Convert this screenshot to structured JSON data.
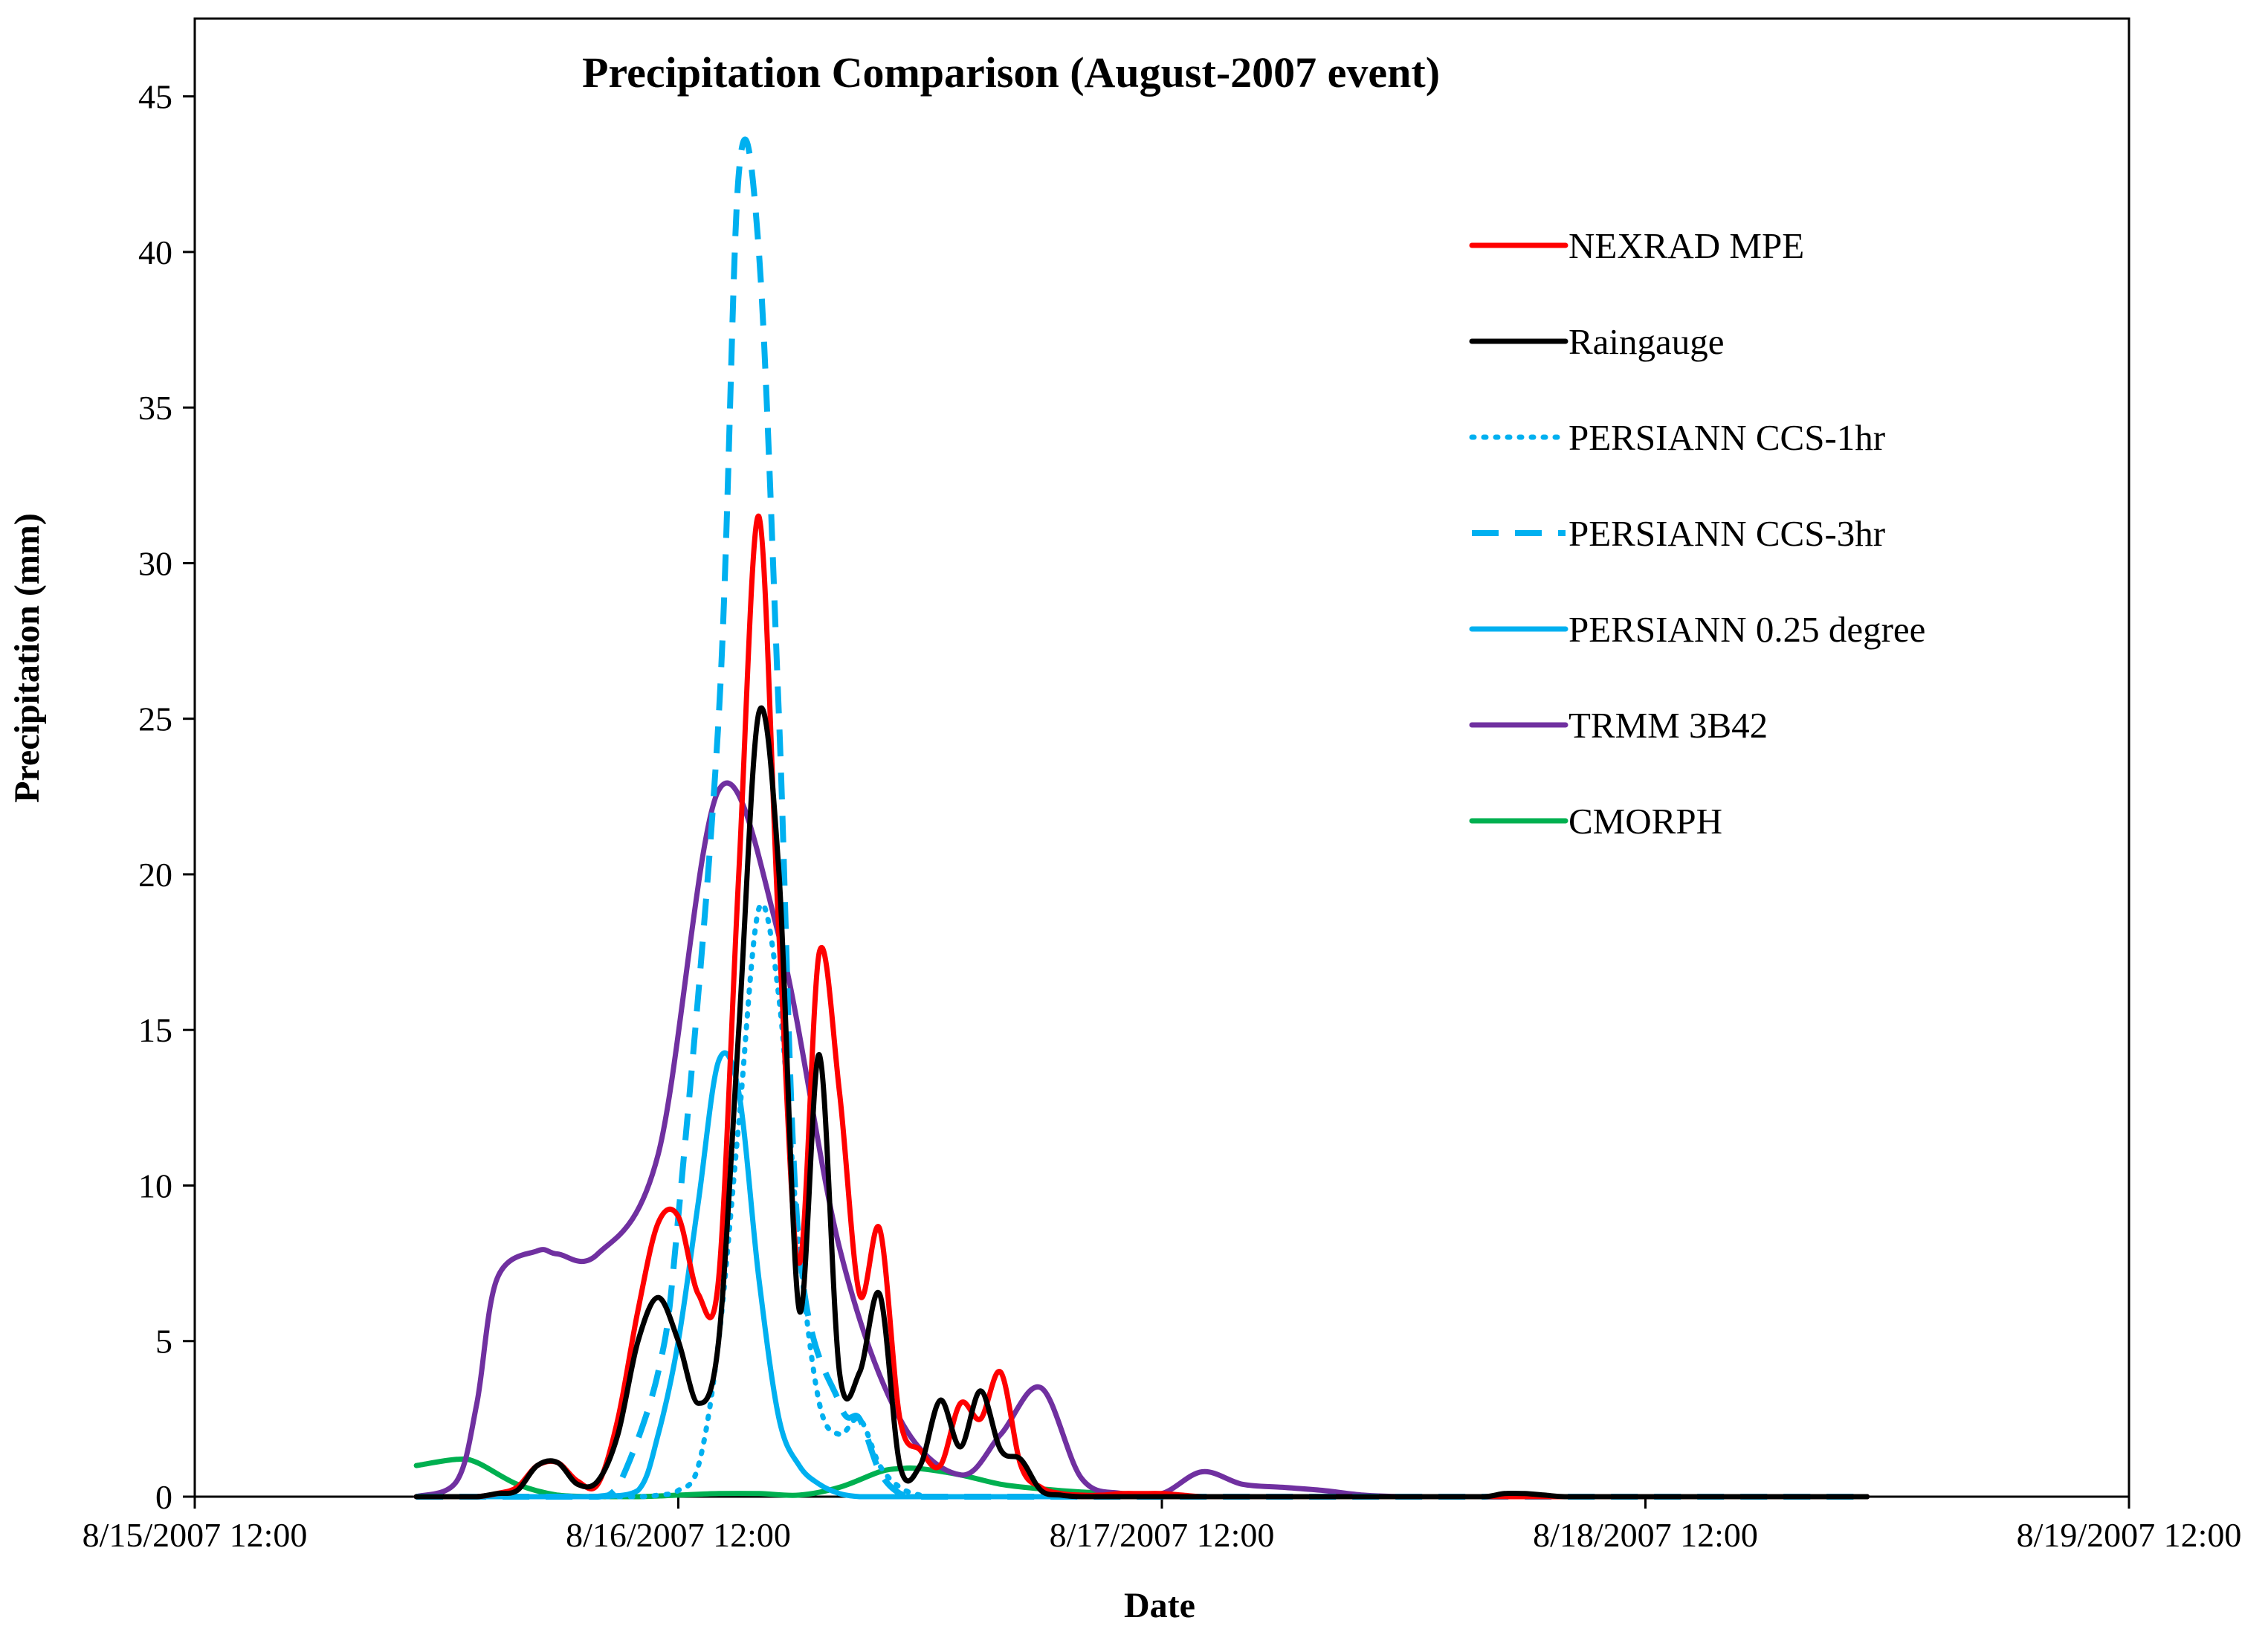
{
  "chart_data": {
    "type": "line",
    "title": "Precipitation Comparison (August-2007 event)",
    "xlabel": "Date",
    "ylabel": "Precipitation (mm)",
    "xlim": [
      0,
      96
    ],
    "x_unit": "hours since 8/15/2007 12:00",
    "ylim": [
      0,
      47.5
    ],
    "x_tick_values": [
      0,
      24,
      48,
      72,
      96
    ],
    "x_tick_labels": [
      "8/15/2007 12:00",
      "8/16/2007 12:00",
      "8/17/2007 12:00",
      "8/18/2007 12:00",
      "8/19/2007 12:00"
    ],
    "y_ticks": [
      0,
      5,
      10,
      15,
      20,
      25,
      30,
      35,
      40,
      45
    ],
    "grid": false,
    "legend_position": "right",
    "series": [
      {
        "name": "NEXRAD MPE",
        "color": "#ff0000",
        "dash": "solid",
        "x": [
          11,
          12,
          13,
          14,
          15,
          16,
          17,
          18,
          19,
          20,
          21,
          22,
          23,
          24,
          25,
          26,
          27,
          28,
          29,
          30,
          31,
          32,
          33,
          34,
          35,
          36,
          37,
          38,
          39,
          40,
          41,
          42,
          43,
          44,
          45,
          46,
          47,
          48,
          49,
          50,
          51,
          52,
          53,
          54,
          55,
          56,
          57,
          58,
          59,
          60,
          62,
          64,
          66,
          68,
          70,
          72,
          74,
          76,
          78,
          80,
          82,
          83
        ],
        "y": [
          0,
          0,
          0,
          0,
          0.1,
          0.3,
          1.0,
          1.1,
          0.5,
          0.4,
          2.5,
          6.0,
          8.8,
          9.0,
          6.5,
          7.0,
          20.0,
          31.5,
          18.0,
          7.5,
          17.5,
          13.0,
          6.5,
          8.6,
          2.5,
          1.5,
          1.0,
          3.0,
          2.5,
          4.0,
          1.0,
          0.3,
          0.1,
          0.05,
          0.05,
          0.1,
          0.1,
          0.1,
          0.05,
          0,
          0,
          0,
          0,
          0,
          0,
          0,
          0,
          0,
          0,
          0,
          0,
          0,
          0,
          0,
          0,
          0,
          0,
          0,
          0,
          0,
          0,
          0
        ]
      },
      {
        "name": "Raingauge",
        "color": "#000000",
        "dash": "solid",
        "x": [
          11,
          12,
          13,
          14,
          15,
          16,
          17,
          18,
          19,
          20,
          21,
          22,
          23,
          24,
          25,
          26,
          27,
          28,
          29,
          30,
          31,
          32,
          33,
          34,
          35,
          36,
          37,
          38,
          39,
          40,
          41,
          42,
          43,
          44,
          45,
          46,
          48,
          50,
          52,
          54,
          56,
          58,
          60,
          62,
          64,
          65,
          66,
          67,
          68,
          70,
          72,
          74,
          76,
          78,
          80,
          82,
          83
        ],
        "y": [
          0,
          0,
          0,
          0,
          0.1,
          0.2,
          1.0,
          1.1,
          0.4,
          0.5,
          2.0,
          5.0,
          6.4,
          5.0,
          3.0,
          5.0,
          15.0,
          25.2,
          20.0,
          6.0,
          14.2,
          4.0,
          4.0,
          6.5,
          1.0,
          1.0,
          3.1,
          1.6,
          3.4,
          1.5,
          1.2,
          0.2,
          0.05,
          0,
          0,
          0,
          0,
          0,
          0,
          0,
          0,
          0,
          0,
          0,
          0,
          0.1,
          0.1,
          0.05,
          0,
          0,
          0,
          0,
          0,
          0,
          0,
          0,
          0
        ]
      },
      {
        "name": "PERSIANN CCS-1hr",
        "color": "#00b0f0",
        "dash": "dotted",
        "x": [
          11,
          14,
          17,
          20,
          22,
          23,
          24,
          25,
          26,
          27,
          28,
          29,
          30,
          31,
          32,
          33,
          34,
          35,
          36,
          37,
          38,
          40,
          45,
          50,
          55,
          60,
          65,
          70,
          75,
          80,
          83
        ],
        "y": [
          0,
          0,
          0,
          0,
          0,
          0.05,
          0.2,
          1.0,
          5.0,
          12.0,
          18.9,
          16.0,
          8.0,
          3.0,
          2.0,
          2.5,
          1.0,
          0.3,
          0.05,
          0,
          0,
          0,
          0,
          0,
          0,
          0,
          0,
          0,
          0,
          0,
          0
        ]
      },
      {
        "name": "PERSIANN CCS-3hr",
        "color": "#00b0f0",
        "dash": "dashed",
        "x": [
          11,
          14,
          17,
          20,
          21,
          23,
          24,
          26,
          27,
          28,
          29,
          30,
          32,
          33,
          34,
          35,
          36,
          38,
          40,
          45,
          50,
          55,
          60,
          65,
          70,
          75,
          80,
          83
        ],
        "y": [
          0,
          0,
          0,
          0,
          0.3,
          4.0,
          9.0,
          25.0,
          42.5,
          40.0,
          25.0,
          8.0,
          3.0,
          2.5,
          0.8,
          0.1,
          0,
          0,
          0,
          0,
          0,
          0,
          0,
          0,
          0,
          0,
          0,
          0
        ]
      },
      {
        "name": "PERSIANN 0.25 degree",
        "color": "#00b0f0",
        "dash": "solid",
        "x": [
          11,
          14,
          17,
          20,
          22,
          23,
          24,
          25,
          26,
          27,
          28,
          29,
          30,
          31,
          32,
          33,
          34,
          35,
          36,
          37,
          38,
          40,
          45,
          50,
          55,
          60,
          65,
          70,
          75,
          80,
          83
        ],
        "y": [
          0,
          0,
          0,
          0,
          0.2,
          2.0,
          5.0,
          9.5,
          14.0,
          13.0,
          7.0,
          2.5,
          1.0,
          0.4,
          0.1,
          0,
          0,
          0,
          0,
          0,
          0,
          0,
          0,
          0,
          0,
          0,
          0,
          0,
          0,
          0,
          0
        ]
      },
      {
        "name": "TRMM 3B42",
        "color": "#7030a0",
        "dash": "solid",
        "x": [
          11,
          13,
          14,
          15,
          17,
          18,
          20,
          23,
          26,
          29,
          32,
          35,
          38,
          40,
          42,
          44,
          46,
          48,
          50,
          52,
          54,
          56,
          58,
          60,
          62,
          64,
          66,
          68,
          70,
          72,
          74,
          76,
          78,
          80,
          82,
          83
        ],
        "y": [
          0,
          0.5,
          3.0,
          7.0,
          7.9,
          7.8,
          7.8,
          11.0,
          22.7,
          18.0,
          8.0,
          2.5,
          0.7,
          2.0,
          3.5,
          0.6,
          0.1,
          0.1,
          0.8,
          0.4,
          0.3,
          0.2,
          0.05,
          0,
          0,
          0,
          0,
          0,
          0,
          0,
          0,
          0,
          0,
          0,
          0,
          0
        ]
      },
      {
        "name": "CMORPH",
        "color": "#00b050",
        "dash": "solid",
        "x": [
          11,
          13,
          14,
          16,
          18,
          20,
          22,
          24,
          26,
          28,
          30,
          32,
          34,
          35,
          36,
          38,
          40,
          42,
          44,
          46,
          48,
          50,
          52,
          54,
          56,
          58,
          60,
          62,
          64,
          66,
          68,
          70,
          72,
          74,
          76,
          78,
          80,
          82,
          83
        ],
        "y": [
          1.0,
          1.2,
          1.1,
          0.4,
          0.05,
          0,
          0,
          0.05,
          0.1,
          0.1,
          0.05,
          0.3,
          0.8,
          0.9,
          0.9,
          0.7,
          0.4,
          0.25,
          0.15,
          0.1,
          0.05,
          0,
          0,
          0,
          0,
          0,
          0,
          0,
          0,
          0,
          0,
          0,
          0,
          0,
          0,
          0,
          0,
          0,
          0
        ]
      }
    ]
  }
}
